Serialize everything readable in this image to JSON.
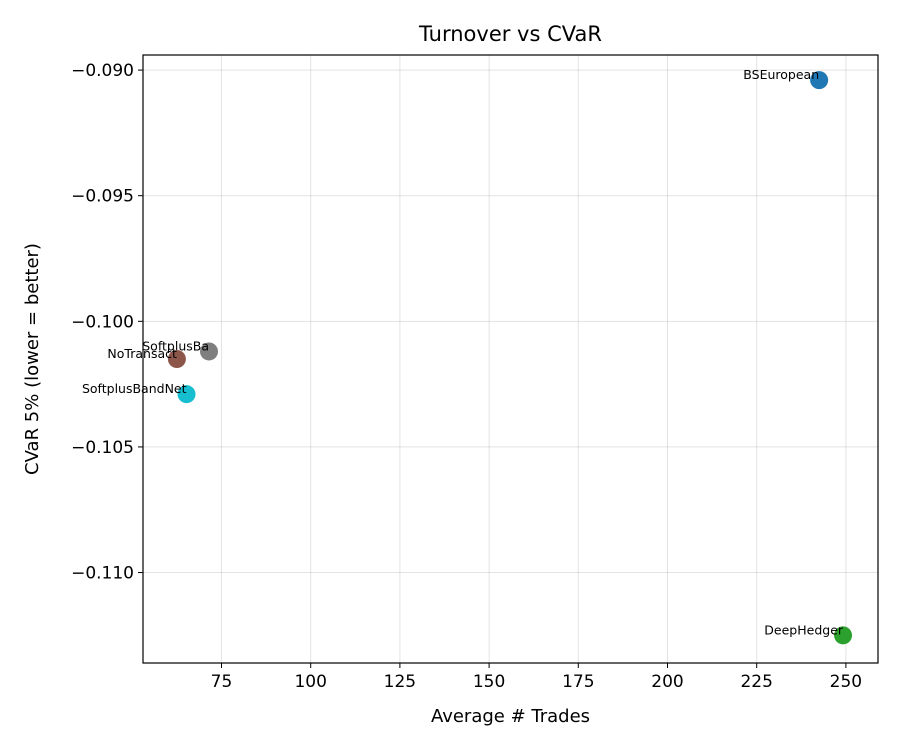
{
  "chart_data": {
    "type": "scatter",
    "title": "Turnover vs CVaR",
    "xlabel": "Average # Trades",
    "ylabel": "CVaR 5% (lower = better)",
    "xlim": [
      53,
      259
    ],
    "ylim": [
      -0.1136,
      -0.0894
    ],
    "xticks": [
      75,
      100,
      125,
      150,
      175,
      200,
      225,
      250
    ],
    "yticks": [
      -0.09,
      -0.095,
      -0.1,
      -0.105,
      -0.11
    ],
    "xtick_labels": [
      "75",
      "100",
      "125",
      "150",
      "175",
      "200",
      "225",
      "250"
    ],
    "ytick_labels": [
      "−0.090",
      "−0.095",
      "−0.100",
      "−0.105",
      "−0.110"
    ],
    "grid": true,
    "points": [
      {
        "label": "BSEuropean",
        "x": 242.5,
        "y": -0.0904,
        "color": "#1f77b4"
      },
      {
        "label": "DeepHedger",
        "x": 249.2,
        "y": -0.1125,
        "color": "#2ca02c"
      },
      {
        "label": "SoftplusBa",
        "x": 71.5,
        "y": -0.1012,
        "color": "#7f7f7f"
      },
      {
        "label": "NoTransact",
        "x": 62.5,
        "y": -0.1015,
        "color": "#8c564b"
      },
      {
        "label": "SoftplusBandNet",
        "x": 65.2,
        "y": -0.1029,
        "color": "#17becf"
      }
    ]
  }
}
